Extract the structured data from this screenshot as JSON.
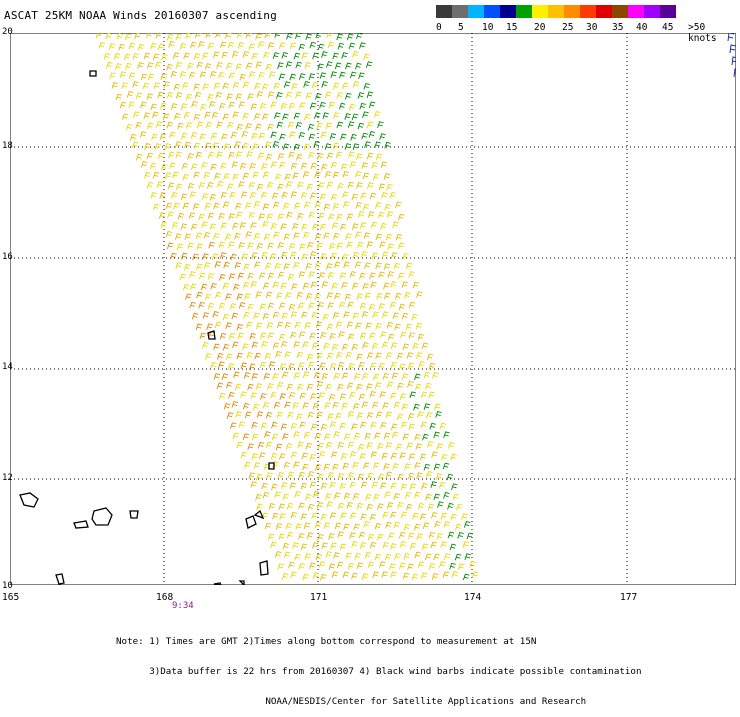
{
  "title": "ASCAT 25KM NOAA Winds 20160307 ascending",
  "legend": {
    "colors": [
      "#3a3a3a",
      "#6e6e6e",
      "#00b4ff",
      "#0050ff",
      "#00008c",
      "#00a000",
      "#fff000",
      "#ffc000",
      "#ff8c00",
      "#ff3c00",
      "#e00000",
      "#8c4600",
      "#ff00ff",
      "#a000ff",
      "#5a0096"
    ],
    "labels": [
      "0",
      "5",
      "10",
      "15",
      "20",
      "25",
      "30",
      "35",
      "40",
      "45",
      ">50 knots"
    ]
  },
  "lat_labels": [
    "20",
    "18",
    "16",
    "14",
    "12",
    "10"
  ],
  "lon_labels": [
    "165",
    "168",
    "171",
    "174",
    "177"
  ],
  "time_label": "9:34",
  "notes": [
    "Note: 1) Times are GMT 2)Times along bottom correspond to measurement at 15N",
    "      3)Data buffer is 22 hrs from 20160307 4) Black wind barbs indicate possible contamination",
    "                           NOAA/NESDIS/Center for Satellite Applications and Research"
  ],
  "barb_colors": {
    "yellow": "#e8d800",
    "gold": "#e6b800",
    "orange": "#e08a00",
    "green": "#008a00",
    "land": "#000000",
    "grid": "#000000"
  }
}
